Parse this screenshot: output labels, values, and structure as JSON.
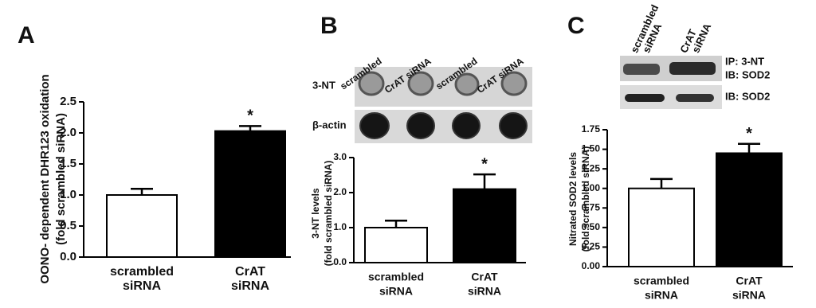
{
  "chart_data": [
    {
      "type": "bar",
      "panel_label": "A",
      "ylabel": [
        "OONO- dependent DHR123 oxidation",
        "(fold scrambled siRNA)"
      ],
      "categories": [
        "scrambled siRNA",
        "CrAT siRNA"
      ],
      "values": [
        1.0,
        2.03
      ],
      "errors": [
        0.1,
        0.08
      ],
      "colors": [
        "#ffffff",
        "#000000"
      ],
      "annotations": [
        {
          "label": "*",
          "index": 1
        }
      ],
      "ylim": [
        0,
        2.5
      ],
      "yticks": [
        {
          "value": 0,
          "label": "0.0"
        },
        {
          "value": 0.5,
          "label": "0.5"
        },
        {
          "value": 1,
          "label": "1.0"
        },
        {
          "value": 1.5,
          "label": "1.5"
        },
        {
          "value": 2,
          "label": "2.0"
        },
        {
          "value": 2.5,
          "label": "2.5"
        }
      ]
    },
    {
      "type": "bar",
      "panel_label": "B",
      "ylabel": [
        "3-NT levels",
        "(fold scrambled siRNA)"
      ],
      "categories": [
        "scrambled siRNA",
        "CrAT siRNA"
      ],
      "values": [
        1.0,
        2.1
      ],
      "errors": [
        0.2,
        0.42
      ],
      "colors": [
        "#ffffff",
        "#000000"
      ],
      "annotations": [
        {
          "label": "*",
          "index": 1
        }
      ],
      "ylim": [
        0,
        3
      ],
      "yticks": [
        {
          "value": 0,
          "label": "0.0"
        },
        {
          "value": 1,
          "label": "1.0"
        },
        {
          "value": 2,
          "label": "2.0"
        },
        {
          "value": 3,
          "label": "3.0"
        }
      ],
      "blot": {
        "columns": [
          "scrambled",
          "CrAT siRNA",
          "scrambled",
          "CrAT siRNA"
        ],
        "rows": [
          "3-NT",
          "β-actin"
        ]
      }
    },
    {
      "type": "bar",
      "panel_label": "C",
      "ylabel": [
        "Nitrated SOD2 levels",
        "(fold scrambled siRNA)"
      ],
      "categories": [
        "scrambled siRNA",
        "CrAT siRNA"
      ],
      "values": [
        1.0,
        1.45
      ],
      "errors": [
        0.12,
        0.12
      ],
      "colors": [
        "#ffffff",
        "#000000"
      ],
      "annotations": [
        {
          "label": "*",
          "index": 1
        }
      ],
      "ylim": [
        0,
        1.75
      ],
      "yticks": [
        {
          "value": 0,
          "label": "0.00"
        },
        {
          "value": 0.25,
          "label": "0.25"
        },
        {
          "value": 0.5,
          "label": "0.50"
        },
        {
          "value": 0.75,
          "label": "0.75"
        },
        {
          "value": 1,
          "label": "1.00"
        },
        {
          "value": 1.25,
          "label": "1.25"
        },
        {
          "value": 1.5,
          "label": "1.50"
        },
        {
          "value": 1.75,
          "label": "1.75"
        }
      ],
      "blot": {
        "columns": [
          "scrambled siRNA",
          "CrAT siRNA"
        ],
        "rows": [
          "IP: 3-NT IB: SOD2",
          "IB: SOD2"
        ]
      }
    }
  ]
}
